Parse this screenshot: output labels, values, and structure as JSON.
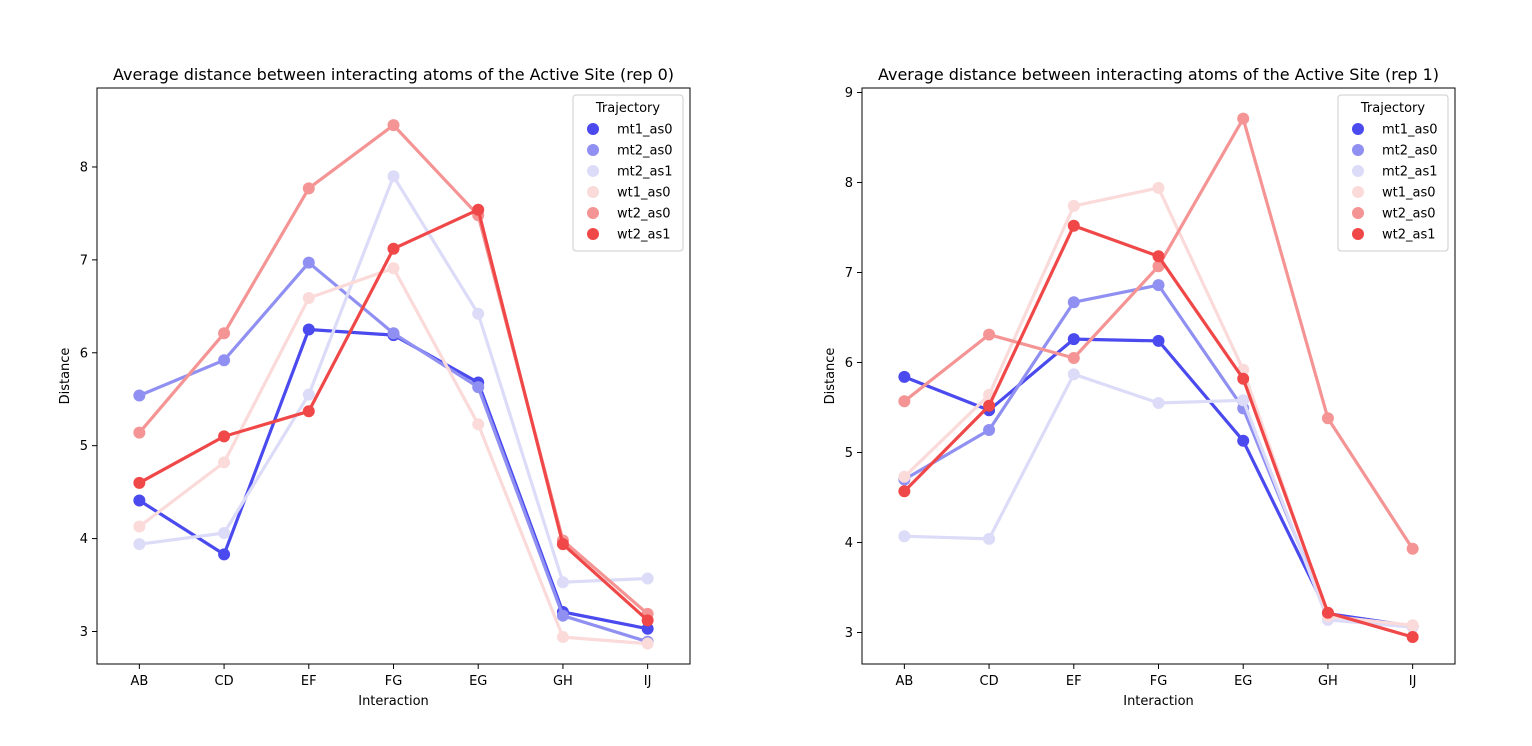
{
  "chart_data": [
    {
      "type": "line",
      "title": "Average distance between interacting atoms of the Active Site (rep 0)",
      "xlabel": "Interaction",
      "ylabel": "Distance",
      "categories": [
        "AB",
        "CD",
        "EF",
        "FG",
        "EG",
        "GH",
        "IJ"
      ],
      "ylim": [
        2.65,
        8.85
      ],
      "yticks": [
        3,
        4,
        5,
        6,
        7,
        8
      ],
      "legend": {
        "title": "Trajectory",
        "placement": "top-right"
      },
      "series": [
        {
          "name": "mt1_as0",
          "color": "#4a4aef",
          "values": [
            4.41,
            3.83,
            6.25,
            6.19,
            5.68,
            3.21,
            3.03
          ]
        },
        {
          "name": "mt2_as0",
          "color": "#9090f2",
          "values": [
            5.54,
            5.92,
            6.97,
            6.21,
            5.63,
            3.17,
            2.89
          ]
        },
        {
          "name": "mt2_as1",
          "color": "#dcdcf8",
          "values": [
            3.94,
            4.06,
            5.55,
            7.9,
            6.42,
            3.53,
            3.57
          ]
        },
        {
          "name": "wt1_as0",
          "color": "#fbdada",
          "values": [
            4.13,
            4.82,
            6.59,
            6.91,
            5.23,
            2.94,
            2.87
          ]
        },
        {
          "name": "wt2_as0",
          "color": "#f59494",
          "values": [
            5.14,
            6.21,
            7.77,
            8.45,
            7.48,
            3.98,
            3.19
          ]
        },
        {
          "name": "wt2_as1",
          "color": "#f04848",
          "values": [
            4.6,
            5.1,
            5.37,
            7.12,
            7.54,
            3.94,
            3.12
          ]
        }
      ]
    },
    {
      "type": "line",
      "title": "Average distance between interacting atoms of the Active Site (rep 1)",
      "xlabel": "Interaction",
      "ylabel": "Distance",
      "categories": [
        "AB",
        "CD",
        "EF",
        "FG",
        "EG",
        "GH",
        "IJ"
      ],
      "ylim": [
        2.65,
        9.05
      ],
      "yticks": [
        3,
        4,
        5,
        6,
        7,
        8,
        9
      ],
      "legend": {
        "title": "Trajectory",
        "placement": "top-right"
      },
      "series": [
        {
          "name": "mt1_as0",
          "color": "#4a4aef",
          "values": [
            5.84,
            5.47,
            6.26,
            6.24,
            5.13,
            3.21,
            3.07
          ]
        },
        {
          "name": "mt2_as0",
          "color": "#9090f2",
          "values": [
            4.7,
            5.25,
            6.67,
            6.86,
            5.49,
            3.19,
            3.07
          ]
        },
        {
          "name": "mt2_as1",
          "color": "#dcdcf8",
          "values": [
            4.07,
            4.04,
            5.87,
            5.55,
            5.58,
            3.14,
            3.06
          ]
        },
        {
          "name": "wt1_as0",
          "color": "#fbdada",
          "values": [
            4.73,
            5.64,
            7.74,
            7.94,
            5.92,
            3.18,
            3.08
          ]
        },
        {
          "name": "wt2_as0",
          "color": "#f59494",
          "values": [
            5.57,
            6.31,
            6.05,
            7.07,
            8.71,
            5.38,
            3.93
          ]
        },
        {
          "name": "wt2_as1",
          "color": "#f04848",
          "values": [
            4.57,
            5.52,
            7.52,
            7.18,
            5.82,
            3.22,
            2.95
          ]
        }
      ]
    }
  ]
}
